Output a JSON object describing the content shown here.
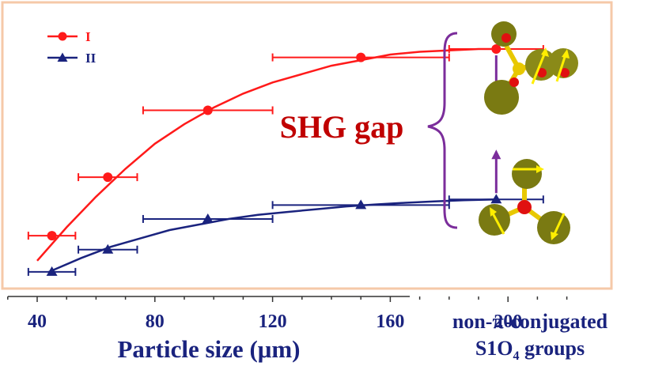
{
  "chart_data": {
    "type": "line",
    "xlabel": "Particle size (μm)",
    "ylabel": "",
    "xlim": [
      30,
      220
    ],
    "ylim": [
      0,
      1
    ],
    "xticks": [
      40,
      80,
      120,
      160,
      200
    ],
    "xtick_labels": [
      "40",
      "80",
      "120",
      "160",
      "200"
    ],
    "legend_position": "top-left",
    "series": [
      {
        "name": "I",
        "color": "#ff1a1a",
        "marker": "circle",
        "points": [
          {
            "x": 45,
            "y": 0.17,
            "xerr": 8
          },
          {
            "x": 64,
            "y": 0.38,
            "xerr": 10
          },
          {
            "x": 98,
            "y": 0.62,
            "xerr": 22
          },
          {
            "x": 150,
            "y": 0.81,
            "xerr": 30
          },
          {
            "x": 196,
            "y": 0.84,
            "xerr": 16
          }
        ],
        "fit": [
          [
            40,
            0.08
          ],
          [
            50,
            0.2
          ],
          [
            60,
            0.31
          ],
          [
            70,
            0.41
          ],
          [
            80,
            0.5
          ],
          [
            90,
            0.57
          ],
          [
            100,
            0.63
          ],
          [
            110,
            0.68
          ],
          [
            120,
            0.72
          ],
          [
            130,
            0.75
          ],
          [
            140,
            0.78
          ],
          [
            150,
            0.8
          ],
          [
            160,
            0.82
          ],
          [
            170,
            0.83
          ],
          [
            180,
            0.835
          ],
          [
            190,
            0.84
          ],
          [
            196,
            0.84
          ]
        ]
      },
      {
        "name": "II",
        "color": "#1a237e",
        "marker": "triangle",
        "points": [
          {
            "x": 45,
            "y": 0.04,
            "xerr": 8
          },
          {
            "x": 64,
            "y": 0.12,
            "xerr": 10
          },
          {
            "x": 98,
            "y": 0.23,
            "xerr": 22
          },
          {
            "x": 150,
            "y": 0.28,
            "xerr": 30
          },
          {
            "x": 196,
            "y": 0.3,
            "xerr": 16
          }
        ],
        "fit": [
          [
            44,
            0.04
          ],
          [
            55,
            0.09
          ],
          [
            65,
            0.13
          ],
          [
            75,
            0.16
          ],
          [
            85,
            0.19
          ],
          [
            95,
            0.21
          ],
          [
            105,
            0.23
          ],
          [
            115,
            0.245
          ],
          [
            125,
            0.255
          ],
          [
            135,
            0.265
          ],
          [
            145,
            0.275
          ],
          [
            155,
            0.282
          ],
          [
            165,
            0.288
          ],
          [
            175,
            0.293
          ],
          [
            185,
            0.297
          ],
          [
            196,
            0.3
          ]
        ]
      }
    ],
    "annotation": {
      "text": "SHG gap",
      "x": 196,
      "y_top": 0.84,
      "y_bottom": 0.3,
      "color": "#c00000",
      "arrow_color": "#7b2d9b"
    },
    "frame_color": "#f5c9a8",
    "caption_line1": "non-π-conjugated",
    "caption_line2_main": "S1O",
    "caption_line2_sub": "4",
    "caption_line2_tail": " groups"
  }
}
